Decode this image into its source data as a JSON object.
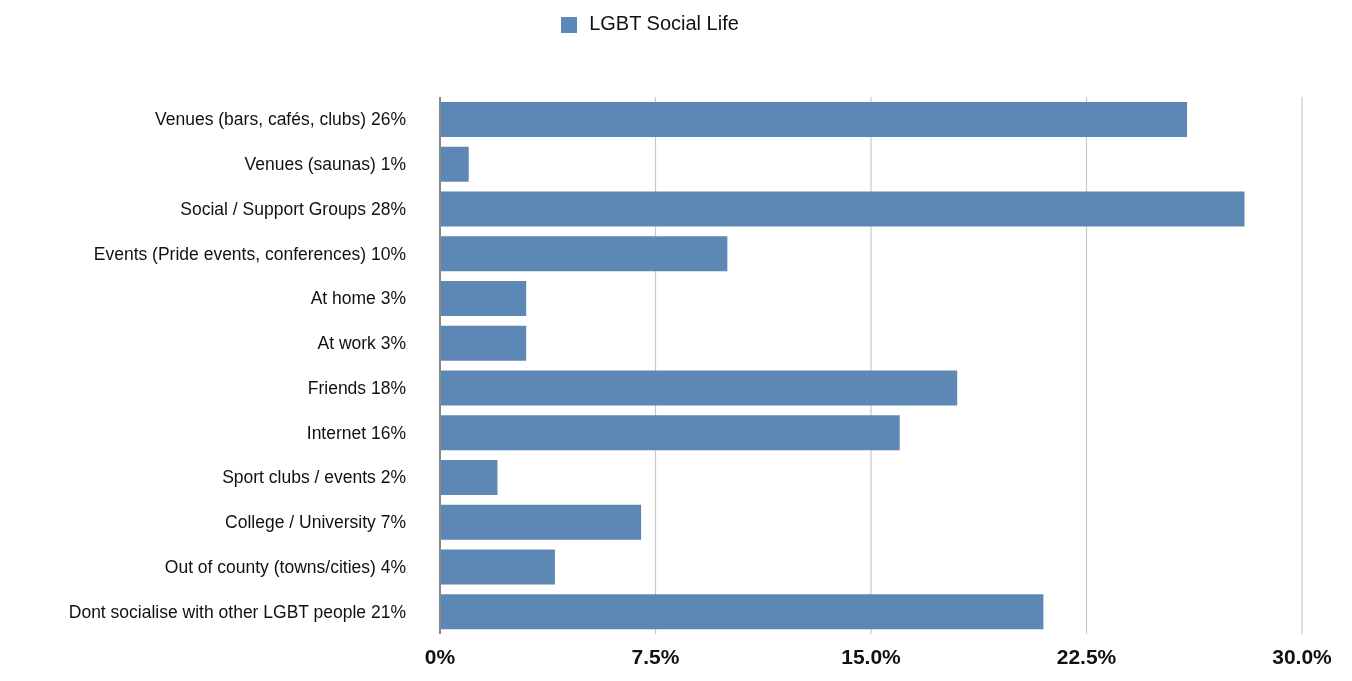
{
  "chart_data": {
    "type": "bar",
    "orientation": "horizontal",
    "categories": [
      "Venues (bars, cafés, clubs) 26%",
      "Venues (saunas) 1%",
      "Social / Support Groups 28%",
      "Events (Pride events, conferences) 10%",
      "At home 3%",
      "At work 3%",
      "Friends 18%",
      "Internet 16%",
      "Sport clubs / events 2%",
      "College / University 7%",
      "Out of county (towns/cities) 4%",
      "Dont socialise with other LGBT people 21%"
    ],
    "series": [
      {
        "name": "LGBT Social Life",
        "color": "#5d88b6",
        "values": [
          26,
          1,
          28,
          10,
          3,
          3,
          18,
          16,
          2,
          7,
          4,
          21
        ]
      }
    ],
    "xlim": [
      0,
      30
    ],
    "xticks": [
      {
        "value": 0,
        "label": "0%"
      },
      {
        "value": 7.5,
        "label": "7.5%"
      },
      {
        "value": 15,
        "label": "15.0%"
      },
      {
        "value": 22.5,
        "label": "22.5%"
      },
      {
        "value": 30,
        "label": "30.0%"
      }
    ],
    "grid": "x",
    "legend": "top"
  }
}
